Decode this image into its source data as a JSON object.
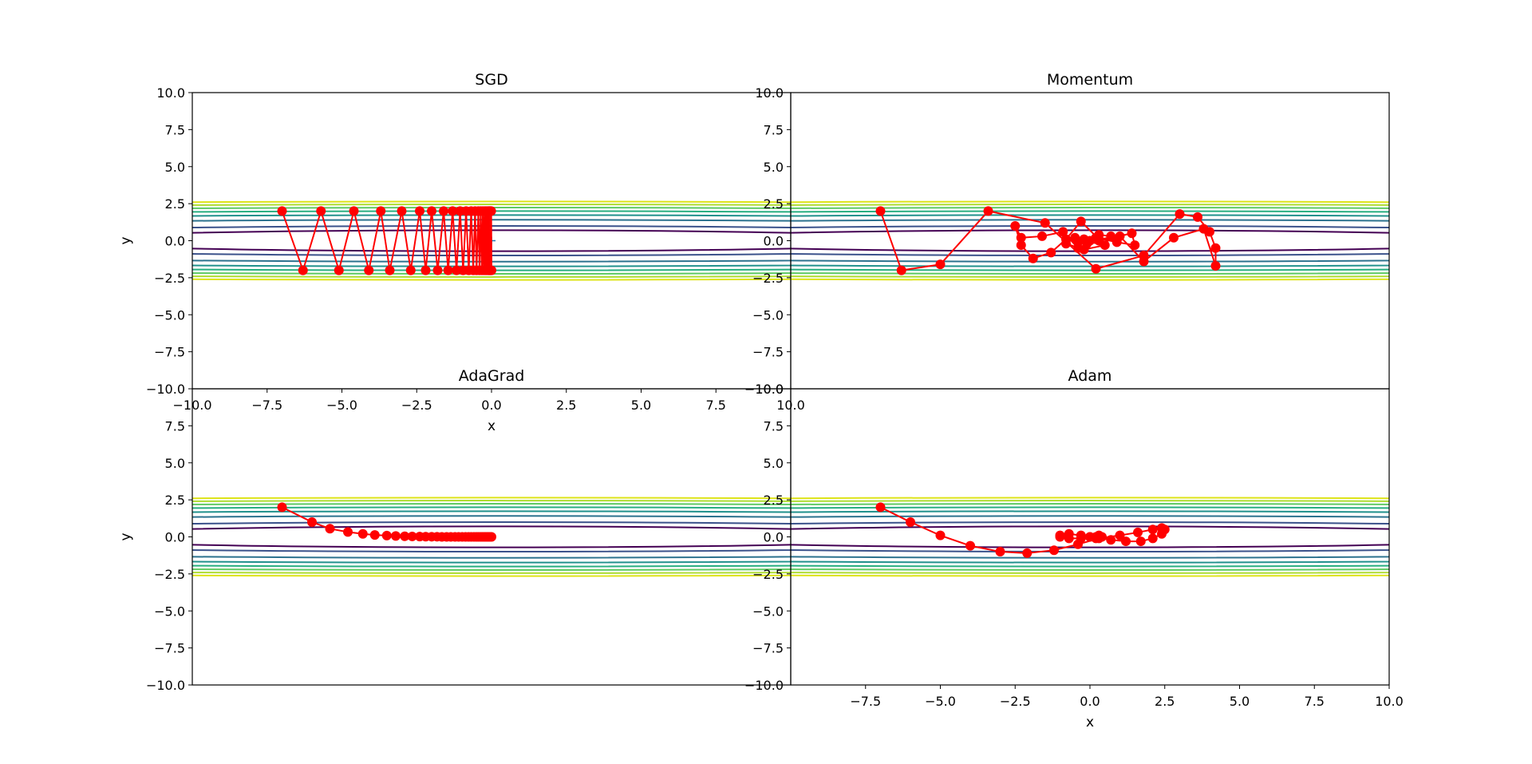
{
  "colors": {
    "path": "#ff0000",
    "contours": [
      "#440154",
      "#3b528b",
      "#2c728e",
      "#21918c",
      "#28ae80",
      "#5ec962",
      "#addc30",
      "#dde318"
    ],
    "axes": "#000000",
    "background": "#ffffff"
  },
  "chart_data": [
    {
      "type": "line",
      "title": "SGD",
      "xlabel": "x",
      "ylabel": "y",
      "xlim": [
        -10,
        10
      ],
      "ylim": [
        -10,
        10
      ],
      "xticks": [
        "−10.0",
        "−7.5",
        "−5.0",
        "−2.5",
        "0.0",
        "2.5",
        "5.0",
        "7.5",
        "10.0"
      ],
      "yticks": [
        "−10.0",
        "−7.5",
        "−5.0",
        "−2.5",
        "0.0",
        "2.5",
        "5.0",
        "7.5",
        "10.0"
      ],
      "contour_levels": [
        0.5,
        1,
        2,
        3,
        4,
        5,
        6,
        7
      ],
      "minimum_marker": [
        0,
        0
      ],
      "path": [
        [
          -7.0,
          2.0
        ],
        [
          -6.3,
          -2.0
        ],
        [
          -5.7,
          2.0
        ],
        [
          -5.1,
          -2.0
        ],
        [
          -4.6,
          2.0
        ],
        [
          -4.1,
          -2.0
        ],
        [
          -3.7,
          2.0
        ],
        [
          -3.4,
          -2.0
        ],
        [
          -3.0,
          2.0
        ],
        [
          -2.7,
          -2.0
        ],
        [
          -2.4,
          2.0
        ],
        [
          -2.2,
          -2.0
        ],
        [
          -2.0,
          2.0
        ],
        [
          -1.8,
          -2.0
        ],
        [
          -1.6,
          2.0
        ],
        [
          -1.45,
          -2.0
        ],
        [
          -1.3,
          2.0
        ],
        [
          -1.17,
          -2.0
        ],
        [
          -1.05,
          2.0
        ],
        [
          -0.95,
          -2.0
        ],
        [
          -0.85,
          2.0
        ],
        [
          -0.76,
          -2.0
        ],
        [
          -0.68,
          2.0
        ],
        [
          -0.61,
          -2.0
        ],
        [
          -0.55,
          2.0
        ],
        [
          -0.5,
          -2.0
        ],
        [
          -0.44,
          2.0
        ],
        [
          -0.4,
          -2.0
        ],
        [
          -0.36,
          2.0
        ],
        [
          -0.32,
          -2.0
        ],
        [
          -0.29,
          2.0
        ],
        [
          -0.26,
          -2.0
        ],
        [
          -0.23,
          2.0
        ],
        [
          -0.21,
          -2.0
        ],
        [
          -0.19,
          2.0
        ],
        [
          -0.17,
          -2.0
        ],
        [
          -0.15,
          2.0
        ],
        [
          -0.13,
          -2.0
        ],
        [
          -0.11,
          2.0
        ],
        [
          -0.1,
          -2.0
        ],
        [
          -0.09,
          2.0
        ],
        [
          -0.08,
          -2.0
        ],
        [
          -0.07,
          2.0
        ],
        [
          -0.06,
          -2.0
        ],
        [
          -0.05,
          2.0
        ],
        [
          -0.04,
          -2.0
        ],
        [
          -0.03,
          2.0
        ],
        [
          -0.02,
          -2.0
        ],
        [
          -0.01,
          2.0
        ],
        [
          0.0,
          -2.0
        ]
      ]
    },
    {
      "type": "line",
      "title": "Momentum",
      "xlabel": "",
      "ylabel": "",
      "xlim": [
        -10,
        10
      ],
      "ylim": [
        -10,
        10
      ],
      "xticks": [],
      "yticks": [
        "−10.0",
        "−7.5",
        "−5.0",
        "−2.5",
        "0.0",
        "2.5",
        "5.0",
        "7.5",
        "10.0"
      ],
      "contour_levels": [
        0.5,
        1,
        2,
        3,
        4,
        5,
        6,
        7
      ],
      "minimum_marker": [
        0,
        0
      ],
      "path": [
        [
          -7.0,
          2.0
        ],
        [
          -6.3,
          -2.0
        ],
        [
          -5.0,
          -1.6
        ],
        [
          -3.4,
          2.0
        ],
        [
          -1.5,
          1.2
        ],
        [
          0.2,
          -1.9
        ],
        [
          1.8,
          -1.0
        ],
        [
          3.0,
          1.8
        ],
        [
          3.6,
          1.6
        ],
        [
          4.0,
          0.6
        ],
        [
          4.2,
          -0.5
        ],
        [
          4.2,
          -1.7
        ],
        [
          3.8,
          0.8
        ],
        [
          2.8,
          0.2
        ],
        [
          1.8,
          -1.4
        ],
        [
          1.0,
          0.3
        ],
        [
          0.3,
          0.1
        ],
        [
          -0.3,
          1.3
        ],
        [
          -0.8,
          0.1
        ],
        [
          -1.3,
          -0.8
        ],
        [
          -1.9,
          -1.2
        ],
        [
          -2.3,
          -0.3
        ],
        [
          -2.5,
          1.0
        ],
        [
          -2.3,
          0.2
        ],
        [
          -1.6,
          0.3
        ],
        [
          -0.9,
          0.6
        ],
        [
          -0.4,
          -0.5
        ],
        [
          0.3,
          0.0
        ],
        [
          1.4,
          0.5
        ],
        [
          1.5,
          -0.3
        ],
        [
          0.9,
          -0.1
        ],
        [
          0.2,
          0.2
        ],
        [
          -0.5,
          0.2
        ],
        [
          -0.8,
          -0.2
        ],
        [
          -0.2,
          -0.6
        ],
        [
          0.5,
          -0.3
        ],
        [
          0.7,
          0.3
        ],
        [
          0.3,
          0.4
        ],
        [
          -0.2,
          0.1
        ],
        [
          -0.4,
          -0.1
        ],
        [
          -0.1,
          -0.2
        ],
        [
          0.2,
          0.1
        ],
        [
          0.0,
          0.0
        ]
      ]
    },
    {
      "type": "line",
      "title": "AdaGrad",
      "xlabel": "",
      "ylabel": "y",
      "xlim": [
        -10,
        10
      ],
      "ylim": [
        -10,
        10
      ],
      "xticks": [],
      "yticks": [
        "−10.0",
        "−7.5",
        "−5.0",
        "−2.5",
        "0.0",
        "2.5",
        "5.0",
        "7.5"
      ],
      "contour_levels": [
        0.5,
        1,
        2,
        3,
        4,
        5,
        6,
        7
      ],
      "minimum_marker": [
        0,
        0
      ],
      "path": [
        [
          -7.0,
          2.0
        ],
        [
          -6.0,
          1.0
        ],
        [
          -5.4,
          0.55
        ],
        [
          -4.8,
          0.33
        ],
        [
          -4.3,
          0.2
        ],
        [
          -3.9,
          0.13
        ],
        [
          -3.5,
          0.09
        ],
        [
          -3.2,
          0.06
        ],
        [
          -2.9,
          0.04
        ],
        [
          -2.65,
          0.03
        ],
        [
          -2.4,
          0.02
        ],
        [
          -2.2,
          0.015
        ],
        [
          -2.0,
          0.01
        ],
        [
          -1.82,
          0.01
        ],
        [
          -1.66,
          0.0
        ],
        [
          -1.5,
          0.0
        ],
        [
          -1.36,
          0.0
        ],
        [
          -1.22,
          0.0
        ],
        [
          -1.1,
          0.0
        ],
        [
          -0.98,
          0.0
        ],
        [
          -0.87,
          0.0
        ],
        [
          -0.77,
          0.0
        ],
        [
          -0.68,
          0.0
        ],
        [
          -0.59,
          0.0
        ],
        [
          -0.51,
          0.0
        ],
        [
          -0.44,
          0.0
        ],
        [
          -0.37,
          0.0
        ],
        [
          -0.31,
          0.0
        ],
        [
          -0.25,
          0.0
        ],
        [
          -0.2,
          0.0
        ],
        [
          -0.15,
          0.0
        ],
        [
          -0.1,
          0.0
        ],
        [
          -0.05,
          0.0
        ],
        [
          0.0,
          0.0
        ]
      ]
    },
    {
      "type": "line",
      "title": "Adam",
      "xlabel": "x",
      "ylabel": "",
      "xlim": [
        -10,
        10
      ],
      "ylim": [
        -10,
        10
      ],
      "xticks": [
        "−7.5",
        "−5.0",
        "−2.5",
        "0.0",
        "2.5",
        "5.0",
        "7.5",
        "10.0"
      ],
      "yticks": [
        "−10.0",
        "−7.5",
        "−5.0",
        "−2.5",
        "0.0",
        "2.5",
        "5.0",
        "7.5",
        "10.0"
      ],
      "contour_levels": [
        0.5,
        1,
        2,
        3,
        4,
        5,
        6,
        7
      ],
      "minimum_marker": [
        0,
        0
      ],
      "path": [
        [
          -7.0,
          2.0
        ],
        [
          -6.0,
          1.0
        ],
        [
          -5.0,
          0.1
        ],
        [
          -4.0,
          -0.6
        ],
        [
          -3.0,
          -1.0
        ],
        [
          -2.1,
          -1.1
        ],
        [
          -1.2,
          -0.9
        ],
        [
          -0.4,
          -0.5
        ],
        [
          0.3,
          -0.1
        ],
        [
          1.0,
          0.1
        ],
        [
          1.6,
          0.3
        ],
        [
          2.1,
          0.5
        ],
        [
          2.4,
          0.6
        ],
        [
          2.5,
          0.5
        ],
        [
          2.4,
          0.2
        ],
        [
          2.1,
          -0.1
        ],
        [
          1.7,
          -0.3
        ],
        [
          1.2,
          -0.3
        ],
        [
          0.7,
          -0.2
        ],
        [
          0.2,
          0.0
        ],
        [
          -0.3,
          0.1
        ],
        [
          -0.7,
          0.2
        ],
        [
          -1.0,
          0.1
        ],
        [
          -1.0,
          0.0
        ],
        [
          -0.7,
          -0.1
        ],
        [
          -0.3,
          -0.1
        ],
        [
          0.0,
          0.0
        ],
        [
          0.3,
          0.1
        ],
        [
          0.4,
          0.0
        ],
        [
          0.2,
          -0.1
        ],
        [
          0.0,
          0.0
        ]
      ]
    }
  ]
}
